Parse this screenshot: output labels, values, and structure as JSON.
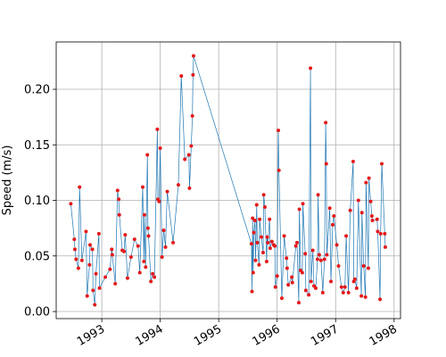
{
  "chart_data": {
    "type": "line",
    "y_label": "Speed (m/s)",
    "grid": true,
    "xlim": [
      1992.22,
      1998.11
    ],
    "xticks": [
      1993,
      1994,
      1995,
      1996,
      1997,
      1998
    ],
    "ylim": [
      -0.0064,
      0.2426
    ],
    "yticks": [
      {
        "value": 0,
        "label": "0.00"
      },
      {
        "value": 0.05,
        "label": "0.05"
      },
      {
        "value": 0.1,
        "label": "0.10"
      },
      {
        "value": 0.15,
        "label": "0.15"
      },
      {
        "value": 0.2,
        "label": "0.20"
      }
    ],
    "x": [
      1992.47,
      1992.53,
      1992.54,
      1992.56,
      1992.6,
      1992.62,
      1992.66,
      1992.73,
      1992.75,
      1992.79,
      1992.8,
      1992.84,
      1992.85,
      1992.88,
      1992.9,
      1992.95,
      1992.96,
      1993.06,
      1993.14,
      1993.17,
      1993.18,
      1993.23,
      1993.27,
      1993.29,
      1993.3,
      1993.35,
      1993.38,
      1993.4,
      1993.44,
      1993.5,
      1993.56,
      1993.62,
      1993.65,
      1993.7,
      1993.72,
      1993.73,
      1993.75,
      1993.78,
      1993.79,
      1993.8,
      1993.84,
      1993.87,
      1993.9,
      1993.95,
      1993.96,
      1993.98,
      1994.0,
      1994.03,
      1994.06,
      1994.09,
      1994.12,
      1994.22,
      1994.31,
      1994.36,
      1994.42,
      1994.49,
      1994.5,
      1994.53,
      1994.55,
      1994.56,
      1994.57,
      1995.56,
      1995.57,
      1995.58,
      1995.59,
      1995.6,
      1995.62,
      1995.63,
      1995.65,
      1995.66,
      1995.69,
      1995.7,
      1995.73,
      1995.76,
      1995.77,
      1995.79,
      1995.82,
      1995.83,
      1995.84,
      1995.87,
      1995.88,
      1995.91,
      1995.94,
      1995.96,
      1995.97,
      1996.0,
      1996.02,
      1996.03,
      1996.08,
      1996.12,
      1996.16,
      1996.17,
      1996.19,
      1996.25,
      1996.26,
      1996.32,
      1996.34,
      1996.37,
      1996.38,
      1996.4,
      1996.43,
      1996.44,
      1996.48,
      1996.49,
      1996.54,
      1996.57,
      1996.58,
      1996.61,
      1996.63,
      1996.66,
      1996.69,
      1996.7,
      1996.72,
      1996.75,
      1996.78,
      1996.81,
      1996.83,
      1996.84,
      1996.85,
      1996.9,
      1996.92,
      1996.95,
      1996.97,
      1997.02,
      1997.05,
      1997.1,
      1997.13,
      1997.16,
      1997.18,
      1997.22,
      1997.25,
      1997.3,
      1997.31,
      1997.33,
      1997.36,
      1997.39,
      1997.44,
      1997.45,
      1997.48,
      1997.51,
      1997.52,
      1997.56,
      1997.57,
      1997.6,
      1997.62,
      1997.63,
      1997.71,
      1997.72,
      1997.76,
      1997.77,
      1997.79,
      1997.84,
      1997.85
    ],
    "series": [
      {
        "line_color": "#1f77b4",
        "marker_color": "#e31a1c",
        "values": [
          0.097,
          0.065,
          0.056,
          0.047,
          0.039,
          0.112,
          0.046,
          0.072,
          0.014,
          0.042,
          0.06,
          0.056,
          0.019,
          0.006,
          0.034,
          0.07,
          0.021,
          0.031,
          0.038,
          0.056,
          0.051,
          0.025,
          0.109,
          0.101,
          0.087,
          0.055,
          0.054,
          0.069,
          0.03,
          0.049,
          0.065,
          0.059,
          0.035,
          0.112,
          0.045,
          0.087,
          0.04,
          0.141,
          0.075,
          0.068,
          0.027,
          0.034,
          0.031,
          0.164,
          0.101,
          0.099,
          0.147,
          0.049,
          0.073,
          0.058,
          0.108,
          0.062,
          0.114,
          0.212,
          0.137,
          0.141,
          0.111,
          0.149,
          0.176,
          0.213,
          0.23,
          0.061,
          0.018,
          0.084,
          0.035,
          0.071,
          0.082,
          0.046,
          0.096,
          0.062,
          0.042,
          0.083,
          0.067,
          0.053,
          0.105,
          0.094,
          0.045,
          0.067,
          0.062,
          0.083,
          0.057,
          0.063,
          0.06,
          0.059,
          0.022,
          0.032,
          0.163,
          0.127,
          0.012,
          0.068,
          0.048,
          0.039,
          0.024,
          0.031,
          0.026,
          0.059,
          0.062,
          0.008,
          0.092,
          0.037,
          0.035,
          0.097,
          0.052,
          0.019,
          0.015,
          0.219,
          0.027,
          0.055,
          0.023,
          0.021,
          0.047,
          0.105,
          0.051,
          0.046,
          0.017,
          0.047,
          0.17,
          0.133,
          0.051,
          0.093,
          0.027,
          0.078,
          0.086,
          0.06,
          0.041,
          0.022,
          0.017,
          0.022,
          0.068,
          0.017,
          0.091,
          0.135,
          0.027,
          0.029,
          0.021,
          0.1,
          0.014,
          0.089,
          0.041,
          0.013,
          0.116,
          0.039,
          0.12,
          0.099,
          0.086,
          0.082,
          0.083,
          0.072,
          0.011,
          0.07,
          0.133,
          0.07,
          0.058
        ]
      }
    ]
  }
}
